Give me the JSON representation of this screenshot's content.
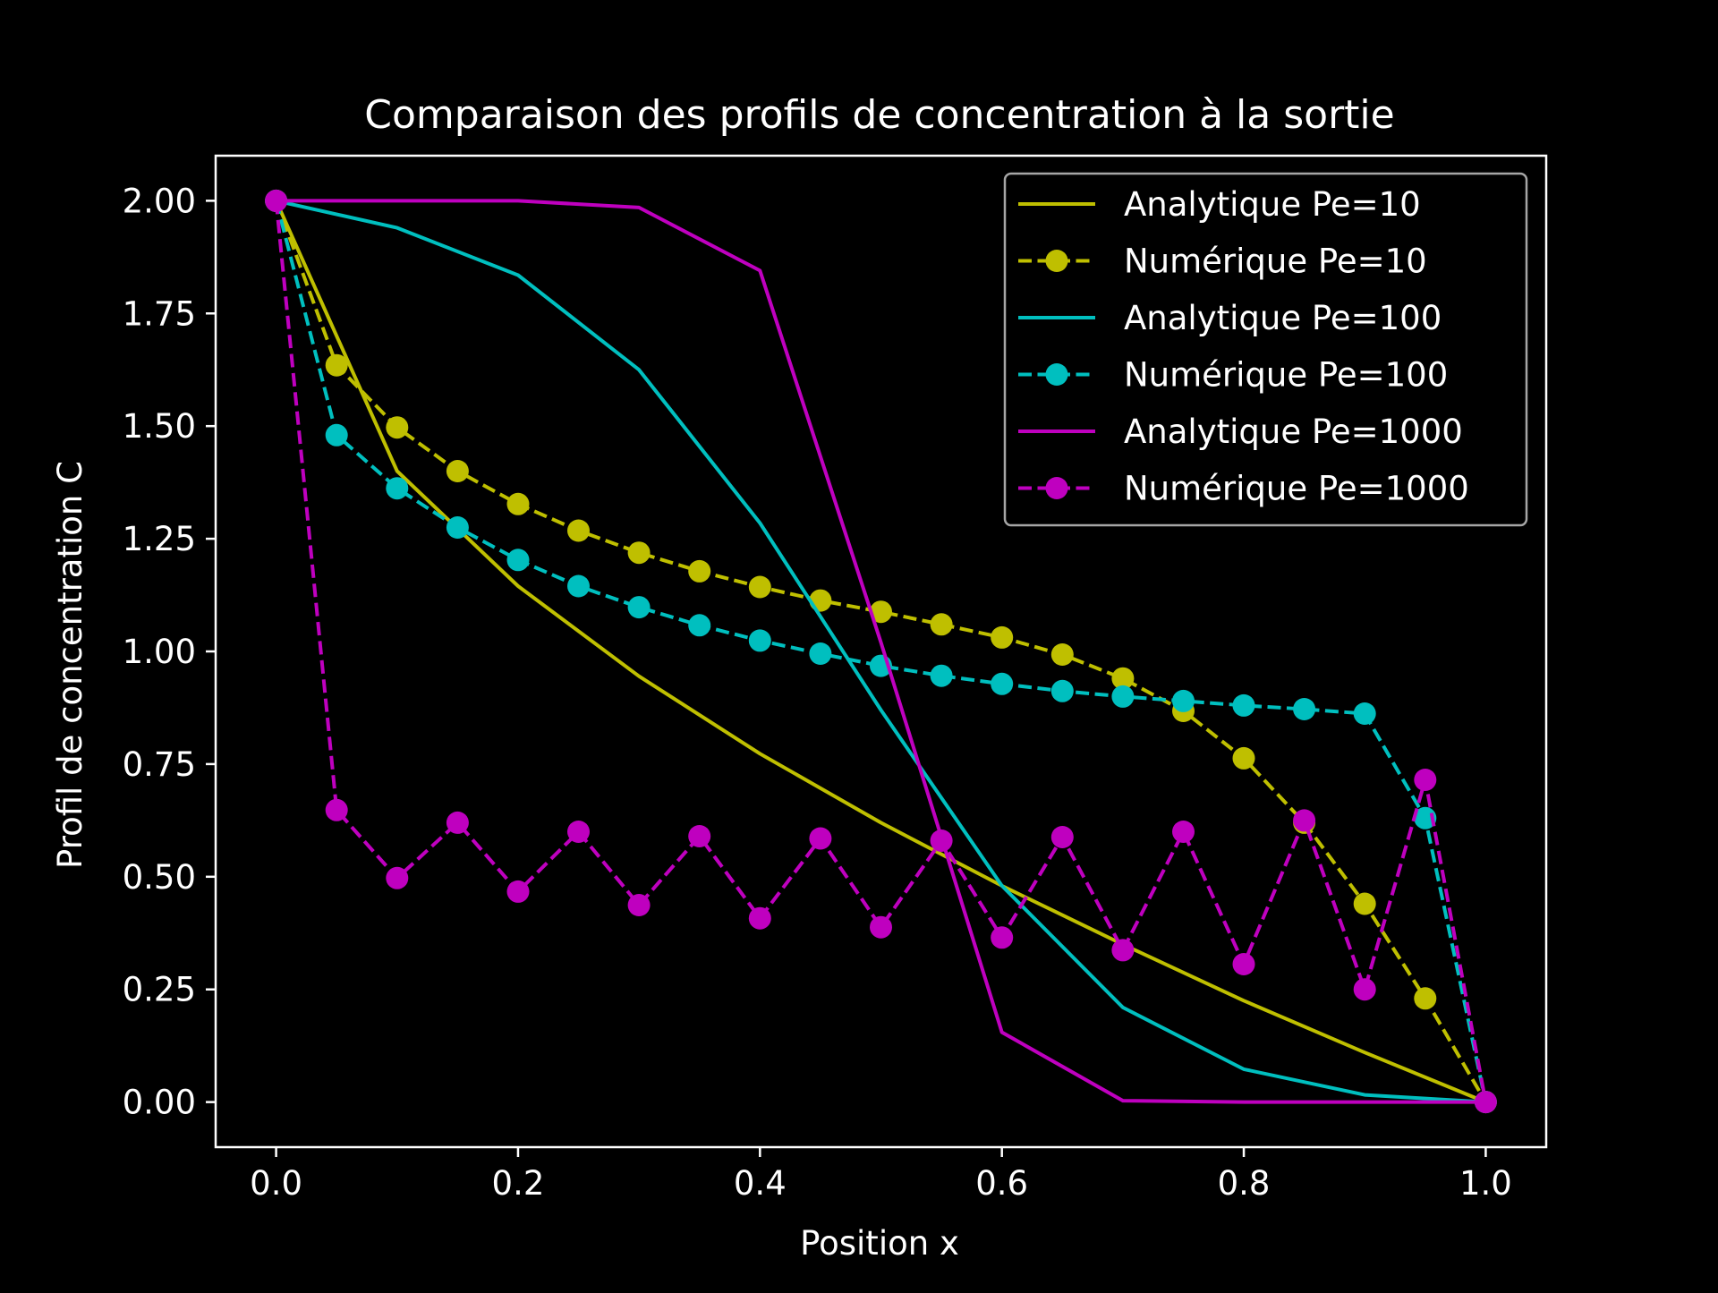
{
  "chart_data": {
    "type": "line",
    "title": "Comparaison des profils de concentration à la sortie",
    "xlabel": "Position x",
    "ylabel": "Profil de concentration C",
    "xlim": [
      -0.05,
      1.05
    ],
    "ylim": [
      -0.1,
      2.1
    ],
    "xticks": [
      0.0,
      0.2,
      0.4,
      0.6,
      0.8,
      1.0
    ],
    "xtick_labels": [
      "0.0",
      "0.2",
      "0.4",
      "0.6",
      "0.8",
      "1.0"
    ],
    "yticks": [
      0.0,
      0.25,
      0.5,
      0.75,
      1.0,
      1.25,
      1.5,
      1.75,
      2.0
    ],
    "ytick_labels": [
      "0.00",
      "0.25",
      "0.50",
      "0.75",
      "1.00",
      "1.25",
      "1.50",
      "1.75",
      "2.00"
    ],
    "grid": false,
    "legend_position": "top-right",
    "background": "#000000",
    "foreground": "#ffffff",
    "series": [
      {
        "name": "Analytique Pe=10",
        "style": "solid",
        "marker": "none",
        "color": "#bfbf00",
        "x": [
          0.0,
          0.1,
          0.2,
          0.3,
          0.4,
          0.5,
          0.6,
          0.7,
          0.8,
          0.9,
          1.0
        ],
        "y": [
          2.0,
          1.4,
          1.145,
          0.945,
          0.773,
          0.62,
          0.48,
          0.35,
          0.225,
          0.11,
          0.0
        ]
      },
      {
        "name": "Numérique Pe=10",
        "style": "dashed",
        "marker": "circle",
        "color": "#bfbf00",
        "x": [
          0.0,
          0.05,
          0.1,
          0.15,
          0.2,
          0.25,
          0.3,
          0.35,
          0.4,
          0.45,
          0.5,
          0.55,
          0.6,
          0.65,
          0.7,
          0.75,
          0.8,
          0.85,
          0.9,
          0.95,
          1.0
        ],
        "y": [
          2.0,
          1.635,
          1.497,
          1.4,
          1.327,
          1.268,
          1.219,
          1.178,
          1.143,
          1.113,
          1.088,
          1.06,
          1.031,
          0.993,
          0.94,
          0.868,
          0.763,
          0.62,
          0.44,
          0.23,
          0.0
        ]
      },
      {
        "name": "Analytique Pe=100",
        "style": "solid",
        "marker": "none",
        "color": "#00bfbf",
        "x": [
          0.0,
          0.1,
          0.2,
          0.3,
          0.4,
          0.5,
          0.6,
          0.7,
          0.8,
          0.9,
          1.0
        ],
        "y": [
          2.0,
          1.94,
          1.835,
          1.625,
          1.285,
          0.87,
          0.48,
          0.21,
          0.073,
          0.016,
          0.0
        ]
      },
      {
        "name": "Numérique Pe=100",
        "style": "dashed",
        "marker": "circle",
        "color": "#00bfbf",
        "x": [
          0.0,
          0.05,
          0.1,
          0.15,
          0.2,
          0.25,
          0.3,
          0.35,
          0.4,
          0.45,
          0.5,
          0.55,
          0.6,
          0.65,
          0.7,
          0.75,
          0.8,
          0.85,
          0.9,
          0.95,
          1.0
        ],
        "y": [
          2.0,
          1.48,
          1.362,
          1.275,
          1.203,
          1.145,
          1.098,
          1.058,
          1.024,
          0.995,
          0.968,
          0.946,
          0.928,
          0.912,
          0.9,
          0.89,
          0.88,
          0.872,
          0.862,
          0.63,
          0.0
        ]
      },
      {
        "name": "Analytique Pe=1000",
        "style": "solid",
        "marker": "none",
        "color": "#bf00bf",
        "x": [
          0.0,
          0.1,
          0.2,
          0.3,
          0.4,
          0.5,
          0.6,
          0.7,
          0.8,
          0.9,
          1.0
        ],
        "y": [
          2.0,
          2.0,
          2.0,
          1.985,
          1.845,
          1.02,
          0.155,
          0.003,
          0.0,
          0.0,
          0.0
        ]
      },
      {
        "name": "Numérique Pe=1000",
        "style": "dashed",
        "marker": "circle",
        "color": "#bf00bf",
        "x": [
          0.0,
          0.05,
          0.1,
          0.15,
          0.2,
          0.25,
          0.3,
          0.35,
          0.4,
          0.45,
          0.5,
          0.55,
          0.6,
          0.65,
          0.7,
          0.75,
          0.8,
          0.85,
          0.9,
          0.95,
          1.0
        ],
        "y": [
          2.0,
          0.648,
          0.497,
          0.62,
          0.467,
          0.6,
          0.437,
          0.59,
          0.408,
          0.585,
          0.388,
          0.58,
          0.365,
          0.588,
          0.337,
          0.6,
          0.306,
          0.625,
          0.25,
          0.715,
          0.0
        ]
      }
    ]
  }
}
